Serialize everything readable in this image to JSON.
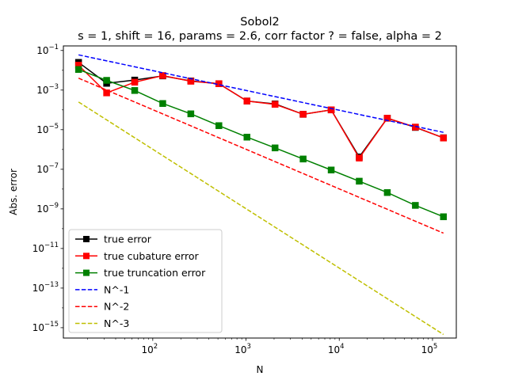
{
  "chart_data": {
    "type": "line",
    "title": "Sobol2",
    "subtitle": "s = 1, shift = 16, params = 2.6, corr factor ? = false, alpha = 2",
    "xlabel": "N",
    "ylabel": "Abs. error",
    "xscale": "log",
    "yscale": "log",
    "xlim": [
      11,
      180000
    ],
    "ylim": [
      3e-16,
      0.17
    ],
    "x_ticks": [
      {
        "value": 100,
        "base": "10",
        "exp": "2"
      },
      {
        "value": 1000,
        "base": "10",
        "exp": "3"
      },
      {
        "value": 10000,
        "base": "10",
        "exp": "4"
      },
      {
        "value": 100000,
        "base": "10",
        "exp": "5"
      }
    ],
    "y_ticks": [
      {
        "value": 1e-15,
        "base": "10",
        "exp": "−15"
      },
      {
        "value": 1e-13,
        "base": "10",
        "exp": "−13"
      },
      {
        "value": 1e-11,
        "base": "10",
        "exp": "−11"
      },
      {
        "value": 1e-09,
        "base": "10",
        "exp": "−9"
      },
      {
        "value": 1e-07,
        "base": "10",
        "exp": "−7"
      },
      {
        "value": 1e-05,
        "base": "10",
        "exp": "−5"
      },
      {
        "value": 0.001,
        "base": "10",
        "exp": "−3"
      },
      {
        "value": 0.1,
        "base": "10",
        "exp": "−1"
      }
    ],
    "grid": false,
    "legend_position": "bottom-left",
    "x": [
      16,
      32,
      64,
      128,
      256,
      512,
      1024,
      2048,
      4096,
      8192,
      16384,
      32768,
      65536,
      131072
    ],
    "series": [
      {
        "name": "true error",
        "color": "#000000",
        "style": "solid",
        "marker": "square",
        "values": [
          0.025,
          0.0022,
          0.0032,
          0.0052,
          0.0029,
          0.0021,
          0.00028,
          0.0002,
          6e-05,
          0.0001,
          4.2e-07,
          3.8e-05,
          1.3e-05,
          3.9e-06
        ]
      },
      {
        "name": "true cubature error",
        "color": "#ff0000",
        "style": "solid",
        "marker": "square",
        "values": [
          0.018,
          0.00072,
          0.0025,
          0.0054,
          0.0028,
          0.0021,
          0.00028,
          0.00019,
          6e-05,
          0.0001,
          3.7e-07,
          3.8e-05,
          1.35e-05,
          3.8e-06
        ]
      },
      {
        "name": "true truncation error",
        "color": "#008000",
        "style": "solid",
        "marker": "square",
        "values": [
          0.011,
          0.0031,
          0.00095,
          0.00021,
          6.3e-05,
          1.6e-05,
          4.2e-06,
          1.2e-06,
          3.3e-07,
          9.2e-08,
          2.5e-08,
          6.7e-09,
          1.5e-09,
          4e-10
        ]
      },
      {
        "name": "N^-1",
        "color": "#0000ff",
        "style": "dashed",
        "marker": "none",
        "values": [
          0.06,
          0.03,
          0.015,
          0.0075,
          0.00375,
          0.001875,
          0.0009375,
          0.00046875,
          0.000234375,
          0.0001171875,
          5.859375e-05,
          2.9296875e-05,
          1.46484375e-05,
          7.32421875e-06
        ]
      },
      {
        "name": "N^-2",
        "color": "#ff0000",
        "style": "dashed",
        "marker": "none",
        "values": [
          0.004,
          0.001,
          0.00025,
          6.25e-05,
          1.5625e-05,
          3.90625e-06,
          9.765625e-07,
          2.44140625e-07,
          6.103515625e-08,
          1.52587890625e-08,
          3.814697265625e-09,
          9.5367431640625e-10,
          2.384185791015625e-10,
          5.960464477539063e-11
        ]
      },
      {
        "name": "N^-3",
        "color": "#bfbf00",
        "style": "dashed",
        "marker": "none",
        "values": [
          0.00025,
          3.125e-05,
          3.90625e-06,
          4.8828125e-07,
          6.103515625e-08,
          7.62939453125e-09,
          9.5367431640625e-10,
          1.1920928955078125e-10,
          1.4901161193847657e-11,
          1.862645149230957e-12,
          2.3283064365386963e-13,
          2.9103830456733704e-14,
          3.637978807091713e-15,
          4.547473508864641e-16
        ]
      }
    ]
  }
}
